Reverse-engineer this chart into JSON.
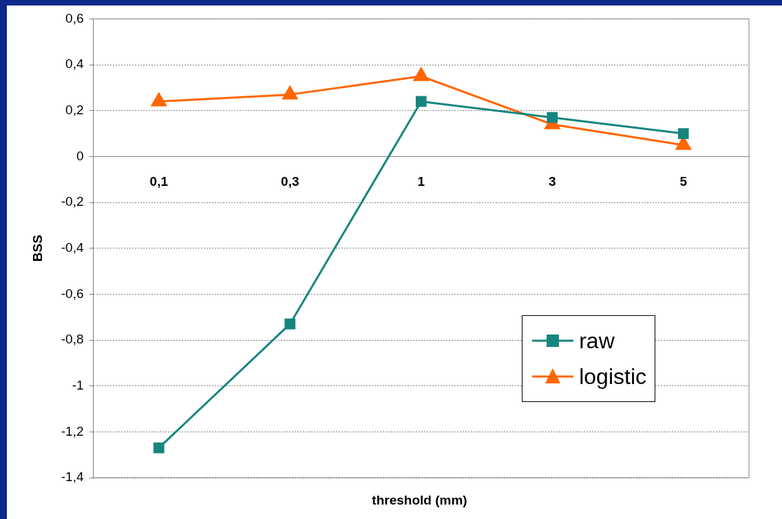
{
  "chart_data": {
    "type": "line",
    "xlabel": "threshold (mm)",
    "ylabel": "BSS",
    "categories": [
      "0,1",
      "0,3",
      "1",
      "3",
      "5"
    ],
    "series": [
      {
        "name": "raw",
        "color": "#17857f",
        "marker": "square",
        "values": [
          -1.27,
          -0.73,
          0.24,
          0.17,
          0.1
        ]
      },
      {
        "name": "logistic",
        "color": "#ff6600",
        "marker": "triangle",
        "values": [
          0.24,
          0.27,
          0.35,
          0.14,
          0.05
        ]
      }
    ],
    "ylim": [
      -1.4,
      0.6
    ],
    "yticks": [
      {
        "value": -1.4,
        "label": "-1,4"
      },
      {
        "value": -1.2,
        "label": "-1,2"
      },
      {
        "value": -1,
        "label": "-1"
      },
      {
        "value": -0.8,
        "label": "-0,8"
      },
      {
        "value": -0.6,
        "label": "-0,6"
      },
      {
        "value": -0.4,
        "label": "-0,4"
      },
      {
        "value": -0.2,
        "label": "-0,2"
      },
      {
        "value": 0,
        "label": "0"
      },
      {
        "value": 0.2,
        "label": "0,2"
      },
      {
        "value": 0.4,
        "label": "0,4"
      },
      {
        "value": 0.6,
        "label": "0,6"
      }
    ],
    "grid": "y",
    "legend": "bottom right",
    "line_style": "solid"
  }
}
